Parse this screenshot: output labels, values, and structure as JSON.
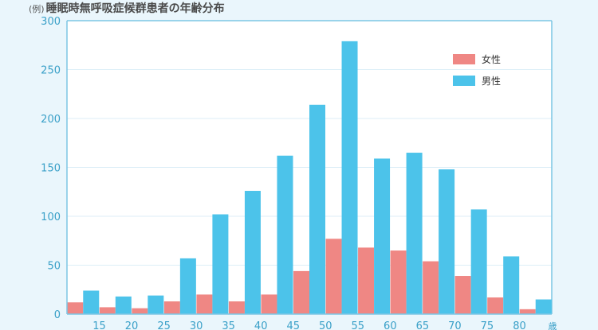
{
  "title_prefix": "(例)",
  "title": "睡眠時無呼吸症候群患者の年齢分布",
  "colors": {
    "female": "#ef8784",
    "male": "#4cc3ea",
    "axis": "#7cc6e4",
    "grid": "#dceef7",
    "plot_bg": "#ffffff",
    "tick": "#3aa0c8"
  },
  "chart_data": {
    "type": "bar",
    "title": "睡眠時無呼吸症候群患者の年齢分布",
    "x_tick_labels": [
      "15",
      "20",
      "25",
      "30",
      "35",
      "40",
      "45",
      "50",
      "55",
      "60",
      "65",
      "70",
      "75",
      "80"
    ],
    "x_unit": "歳",
    "y_ticks": [
      0,
      50,
      100,
      150,
      200,
      250,
      300
    ],
    "ylim": [
      0,
      300
    ],
    "grid": true,
    "legend_position": "top-right",
    "series": [
      {
        "name": "女性",
        "color": "#ef8784",
        "values": [
          12,
          7,
          6,
          13,
          20,
          13,
          20,
          44,
          77,
          68,
          65,
          54,
          39,
          17,
          5
        ]
      },
      {
        "name": "男性",
        "color": "#4cc3ea",
        "values": [
          24,
          18,
          19,
          57,
          102,
          126,
          162,
          214,
          279,
          159,
          165,
          148,
          107,
          59,
          15
        ]
      }
    ]
  }
}
